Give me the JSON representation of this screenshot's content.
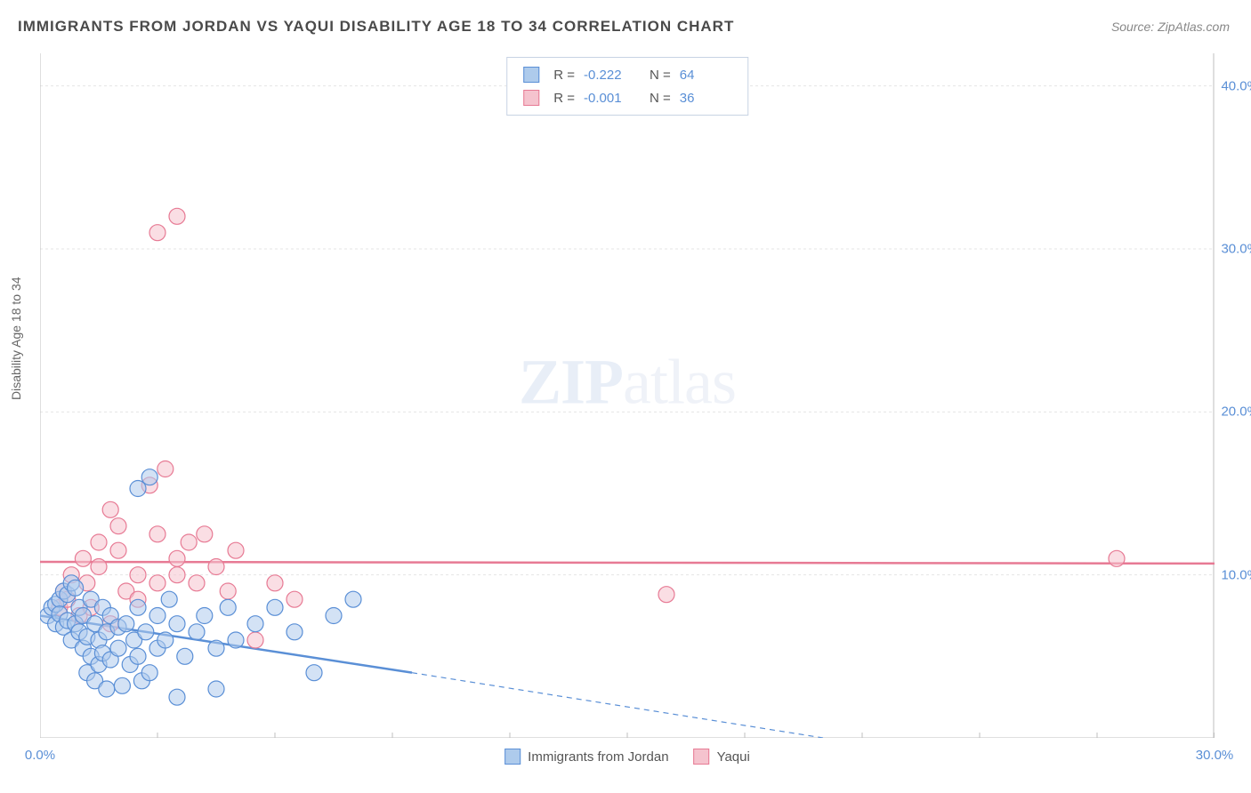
{
  "title": "IMMIGRANTS FROM JORDAN VS YAQUI DISABILITY AGE 18 TO 34 CORRELATION CHART",
  "source": "Source: ZipAtlas.com",
  "ylabel": "Disability Age 18 to 34",
  "watermark_z": "ZIP",
  "watermark_rest": "atlas",
  "chart": {
    "type": "scatter",
    "xlim": [
      0,
      30
    ],
    "ylim": [
      0,
      42
    ],
    "xticks": [
      0.0,
      30.0
    ],
    "xticklabels": [
      "0.0%",
      "30.0%"
    ],
    "yticks": [
      10.0,
      20.0,
      30.0,
      40.0
    ],
    "yticklabels": [
      "10.0%",
      "20.0%",
      "30.0%",
      "40.0%"
    ],
    "grid_color": "#e5e5e5",
    "axis_color": "#bfbfbf",
    "tick_color": "#5a8fd6",
    "background_color": "#ffffff",
    "marker_radius": 9,
    "marker_stroke_width": 1.2,
    "line_width": 2.5,
    "dash_pattern": "6 5"
  },
  "series": [
    {
      "name": "Immigrants from Jordan",
      "fill": "#aecbec",
      "stroke": "#5a8fd6",
      "fill_opacity": 0.55,
      "R": "-0.222",
      "N": "64",
      "trend_line": {
        "x1": 0,
        "y1": 7.5,
        "x2": 9.5,
        "y2": 4.0
      },
      "trend_dash": {
        "x1": 9.5,
        "y1": 4.0,
        "x2": 20.0,
        "y2": 0.0
      },
      "points": [
        [
          0.2,
          7.5
        ],
        [
          0.3,
          8.0
        ],
        [
          0.4,
          8.2
        ],
        [
          0.4,
          7.0
        ],
        [
          0.5,
          8.5
        ],
        [
          0.5,
          7.6
        ],
        [
          0.6,
          9.0
        ],
        [
          0.6,
          6.8
        ],
        [
          0.7,
          8.8
        ],
        [
          0.7,
          7.2
        ],
        [
          0.8,
          9.5
        ],
        [
          0.8,
          6.0
        ],
        [
          0.9,
          7.0
        ],
        [
          0.9,
          9.2
        ],
        [
          1.0,
          6.5
        ],
        [
          1.0,
          8.0
        ],
        [
          1.1,
          5.5
        ],
        [
          1.1,
          7.5
        ],
        [
          1.2,
          6.2
        ],
        [
          1.2,
          4.0
        ],
        [
          1.3,
          8.5
        ],
        [
          1.3,
          5.0
        ],
        [
          1.4,
          3.5
        ],
        [
          1.4,
          7.0
        ],
        [
          1.5,
          6.0
        ],
        [
          1.5,
          4.5
        ],
        [
          1.6,
          5.2
        ],
        [
          1.6,
          8.0
        ],
        [
          1.7,
          3.0
        ],
        [
          1.7,
          6.5
        ],
        [
          1.8,
          4.8
        ],
        [
          1.8,
          7.5
        ],
        [
          2.0,
          5.5
        ],
        [
          2.0,
          6.8
        ],
        [
          2.1,
          3.2
        ],
        [
          2.2,
          7.0
        ],
        [
          2.3,
          4.5
        ],
        [
          2.4,
          6.0
        ],
        [
          2.5,
          8.0
        ],
        [
          2.5,
          5.0
        ],
        [
          2.6,
          3.5
        ],
        [
          2.7,
          6.5
        ],
        [
          2.8,
          4.0
        ],
        [
          3.0,
          7.5
        ],
        [
          3.0,
          5.5
        ],
        [
          3.2,
          6.0
        ],
        [
          3.3,
          8.5
        ],
        [
          3.5,
          2.5
        ],
        [
          3.5,
          7.0
        ],
        [
          3.7,
          5.0
        ],
        [
          4.0,
          6.5
        ],
        [
          4.2,
          7.5
        ],
        [
          4.5,
          5.5
        ],
        [
          4.5,
          3.0
        ],
        [
          4.8,
          8.0
        ],
        [
          5.0,
          6.0
        ],
        [
          5.5,
          7.0
        ],
        [
          6.0,
          8.0
        ],
        [
          6.5,
          6.5
        ],
        [
          7.0,
          4.0
        ],
        [
          7.5,
          7.5
        ],
        [
          8.0,
          8.5
        ],
        [
          2.8,
          16.0
        ],
        [
          2.5,
          15.3
        ]
      ]
    },
    {
      "name": "Yaqui",
      "fill": "#f5c3ce",
      "stroke": "#e77a94",
      "fill_opacity": 0.55,
      "R": "-0.001",
      "N": "36",
      "trend_line": {
        "x1": 0,
        "y1": 10.8,
        "x2": 30,
        "y2": 10.7
      },
      "points": [
        [
          0.5,
          8.0
        ],
        [
          0.6,
          9.0
        ],
        [
          0.7,
          8.5
        ],
        [
          0.8,
          10.0
        ],
        [
          1.0,
          7.5
        ],
        [
          1.1,
          11.0
        ],
        [
          1.2,
          9.5
        ],
        [
          1.3,
          8.0
        ],
        [
          1.5,
          12.0
        ],
        [
          1.5,
          10.5
        ],
        [
          1.8,
          7.0
        ],
        [
          2.0,
          13.0
        ],
        [
          2.0,
          11.5
        ],
        [
          2.2,
          9.0
        ],
        [
          2.5,
          8.5
        ],
        [
          2.5,
          10.0
        ],
        [
          2.8,
          15.5
        ],
        [
          3.0,
          12.5
        ],
        [
          3.0,
          9.5
        ],
        [
          3.2,
          16.5
        ],
        [
          3.5,
          11.0
        ],
        [
          3.5,
          10.0
        ],
        [
          3.8,
          12.0
        ],
        [
          4.0,
          9.5
        ],
        [
          4.2,
          12.5
        ],
        [
          4.5,
          10.5
        ],
        [
          4.8,
          9.0
        ],
        [
          5.0,
          11.5
        ],
        [
          5.5,
          6.0
        ],
        [
          6.0,
          9.5
        ],
        [
          6.5,
          8.5
        ],
        [
          3.0,
          31.0
        ],
        [
          3.5,
          32.0
        ],
        [
          16.0,
          8.8
        ],
        [
          27.5,
          11.0
        ],
        [
          1.8,
          14.0
        ]
      ]
    }
  ],
  "legend": {
    "series1_label": "Immigrants from Jordan",
    "series2_label": "Yaqui",
    "R_label": "R =",
    "N_label": "N ="
  }
}
